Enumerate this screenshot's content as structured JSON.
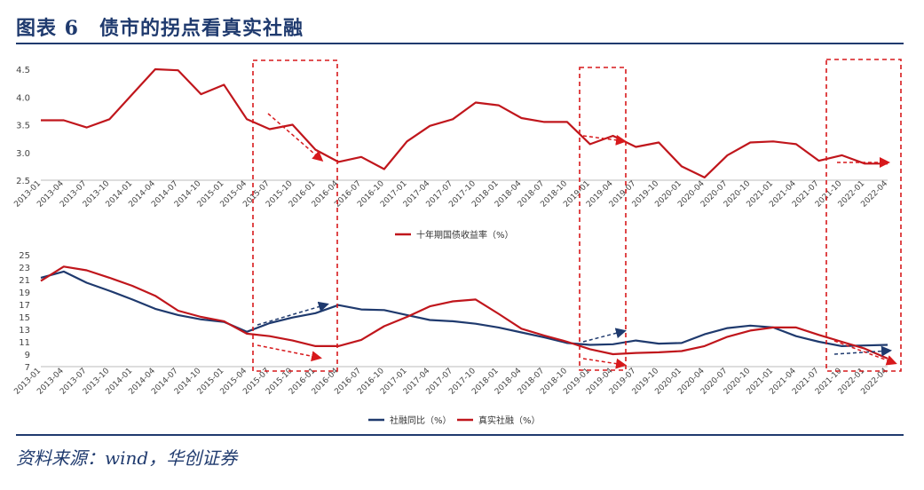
{
  "title": "图表 6　债市的拐点看真实社融",
  "source": "资料来源：wind，华创证券",
  "colors": {
    "red": "#c0161c",
    "navy": "#1f3a6e"
  },
  "chart_data": [
    {
      "type": "line",
      "ylim": [
        2.5,
        4.5
      ],
      "yticks": [
        "2.5",
        "3.0",
        "3.5",
        "4.0",
        "4.5"
      ],
      "x_labels": [
        "2013-01",
        "2013-04",
        "2013-07",
        "2013-10",
        "2014-01",
        "2014-04",
        "2014-07",
        "2014-10",
        "2015-01",
        "2015-04",
        "2015-07",
        "2015-10",
        "2016-01",
        "2016-04",
        "2016-07",
        "2016-10",
        "2017-01",
        "2017-04",
        "2017-07",
        "2017-10",
        "2018-01",
        "2018-04",
        "2018-07",
        "2018-10",
        "2019-01",
        "2019-04",
        "2019-07",
        "2019-10",
        "2020-01",
        "2020-04",
        "2020-07",
        "2020-10",
        "2021-01",
        "2021-04",
        "2021-07",
        "2021-10",
        "2022-01",
        "2022-04"
      ],
      "legend": "top-center-below",
      "series": [
        {
          "name": "十年期国债收益率（%）",
          "color": "#c0161c",
          "values": [
            3.58,
            3.58,
            3.45,
            3.6,
            4.05,
            4.55,
            4.48,
            4.05,
            4.22,
            3.6,
            3.42,
            3.5,
            3.05,
            2.83,
            2.92,
            2.7,
            3.2,
            3.48,
            3.6,
            3.9,
            3.85,
            3.62,
            3.55,
            3.55,
            3.15,
            3.3,
            3.1,
            3.18,
            2.75,
            2.55,
            2.95,
            3.18,
            3.2,
            3.15,
            2.85,
            2.95,
            2.8,
            2.8
          ]
        }
      ]
    },
    {
      "type": "line",
      "ylim": [
        7,
        25
      ],
      "yticks": [
        "7",
        "9",
        "11",
        "13",
        "15",
        "17",
        "19",
        "21",
        "23",
        "25"
      ],
      "x_labels": [
        "2013-01",
        "2013-04",
        "2013-07",
        "2013-10",
        "2014-01",
        "2014-04",
        "2014-07",
        "2014-10",
        "2015-01",
        "2015-04",
        "2015-07",
        "2015-10",
        "2016-01",
        "2016-04",
        "2016-07",
        "2016-10",
        "2017-01",
        "2017-04",
        "2017-07",
        "2017-10",
        "2018-01",
        "2018-04",
        "2018-07",
        "2018-10",
        "2019-01",
        "2019-04",
        "2019-07",
        "2019-10",
        "2020-01",
        "2020-04",
        "2020-07",
        "2020-10",
        "2021-01",
        "2021-04",
        "2021-07",
        "2021-10",
        "2022-01",
        "2022-04"
      ],
      "legend": "bottom-center",
      "series": [
        {
          "name": "社融同比（%）",
          "color": "#1f3a6e",
          "values": [
            21.3,
            22.3,
            20.5,
            19.2,
            17.8,
            16.3,
            15.3,
            14.6,
            14.2,
            12.6,
            14.0,
            14.9,
            15.6,
            16.9,
            16.2,
            16.1,
            15.3,
            14.5,
            14.3,
            13.9,
            13.3,
            12.5,
            11.7,
            10.8,
            10.5,
            10.6,
            11.2,
            10.7,
            10.8,
            12.2,
            13.2,
            13.6,
            13.3,
            11.9,
            11.0,
            10.3,
            10.4,
            10.5
          ]
        },
        {
          "name": "真实社融（%）",
          "color": "#c0161c",
          "values": [
            20.8,
            23.1,
            22.5,
            21.3,
            20.0,
            18.4,
            16.0,
            15.0,
            14.3,
            12.3,
            11.9,
            11.2,
            10.3,
            10.3,
            11.3,
            13.5,
            15.0,
            16.7,
            17.5,
            17.8,
            15.5,
            13.1,
            12.0,
            11.0,
            9.8,
            9.0,
            9.2,
            9.3,
            9.5,
            10.3,
            11.8,
            12.8,
            13.3,
            13.3,
            12.1,
            11.0,
            9.9,
            8.3
          ]
        }
      ]
    }
  ],
  "annotations": {
    "boxes": [
      {
        "label": "box-2015-2016"
      },
      {
        "label": "box-2019"
      },
      {
        "label": "box-2021-2022"
      }
    ]
  }
}
